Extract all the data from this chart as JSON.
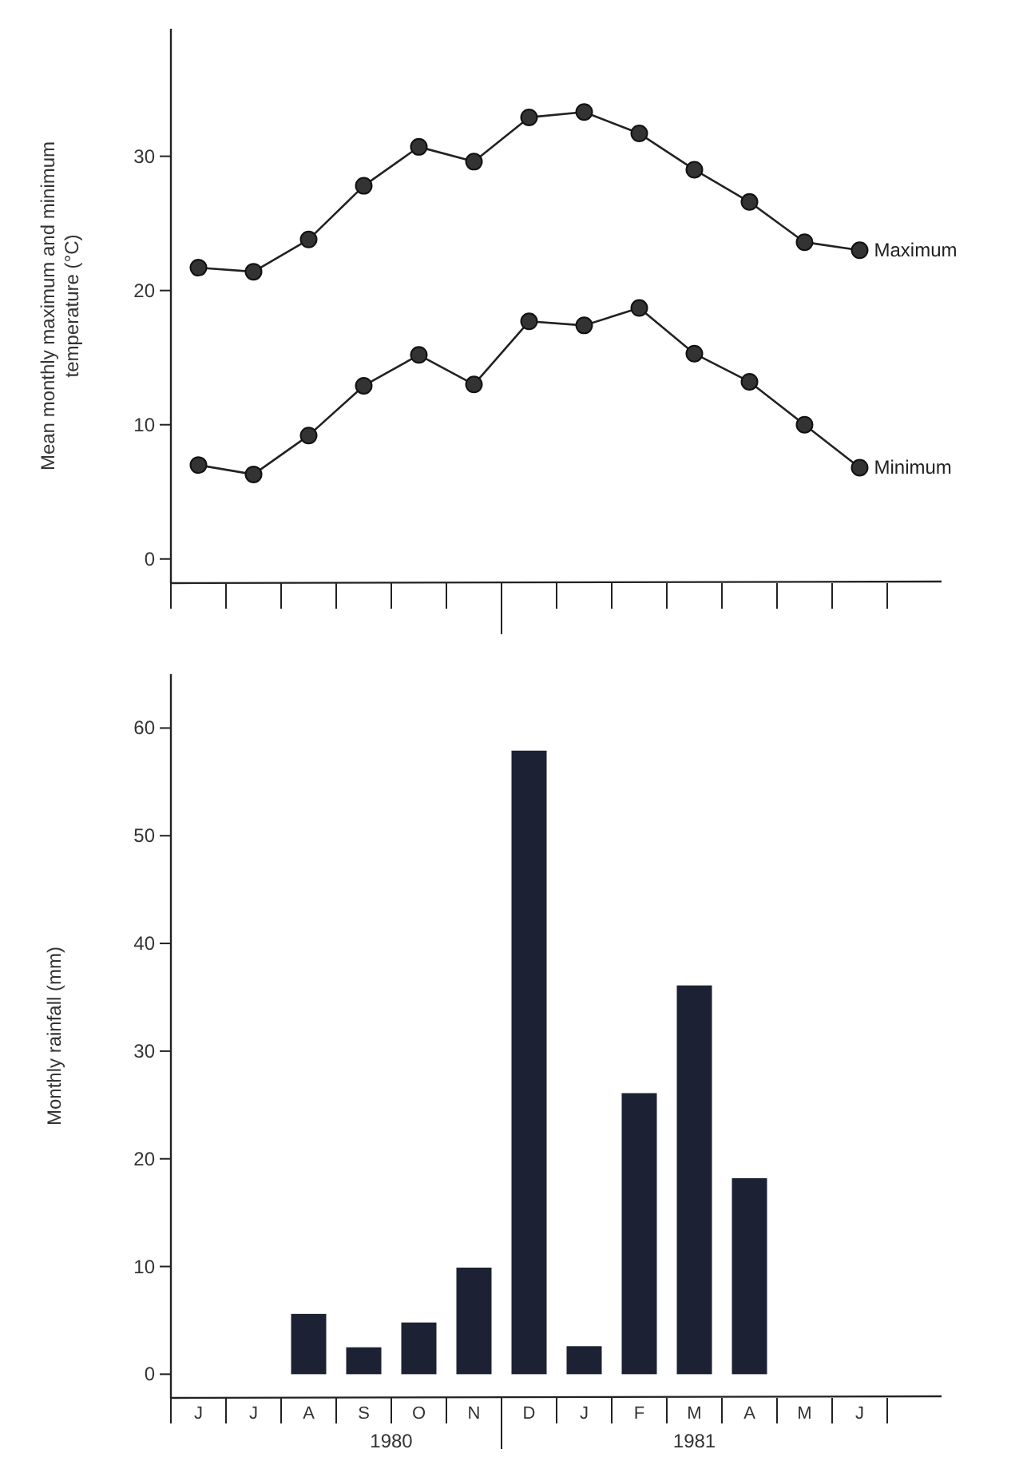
{
  "chart_data": [
    {
      "type": "line",
      "ylabel": "Mean monthly maximum and minimum temperature (°C)",
      "categories": [
        null,
        null,
        null,
        null,
        null,
        null,
        null,
        null,
        null,
        null,
        null,
        null,
        null
      ],
      "ylim": [
        -1.8,
        39.5
      ],
      "yticks": [
        0,
        10,
        20,
        30
      ],
      "tick_labels": "y",
      "marker": "circle",
      "line_style": "solid",
      "grid": false,
      "series": [
        {
          "name": "Maximum",
          "color": "#222222",
          "values": [
            21.7,
            21.4,
            23.8,
            27.8,
            30.7,
            29.6,
            32.9,
            33.3,
            31.7,
            29.0,
            26.6,
            23.6,
            23.0
          ]
        },
        {
          "name": "Minimum",
          "color": "#222222",
          "values": [
            7.0,
            6.3,
            9.2,
            12.9,
            15.2,
            13.0,
            17.7,
            17.4,
            18.7,
            15.3,
            13.2,
            10.0,
            6.8
          ]
        }
      ]
    },
    {
      "type": "bar",
      "ylabel": "Monthly rainfall (mm)",
      "categories": [
        "J",
        "J",
        "A",
        "S",
        "O",
        "N",
        "D",
        "J",
        "F",
        "M",
        "A",
        "M",
        "J"
      ],
      "ylim": [
        -2.2,
        65
      ],
      "yticks": [
        0,
        10,
        20,
        30,
        40,
        50,
        60
      ],
      "grid": false,
      "values": [
        null,
        null,
        5.6,
        2.5,
        4.8,
        9.9,
        57.9,
        2.6,
        26.1,
        36.1,
        18.2,
        null,
        null
      ],
      "color": "#1c2233",
      "annotations": [
        "1980",
        "1981"
      ]
    }
  ]
}
